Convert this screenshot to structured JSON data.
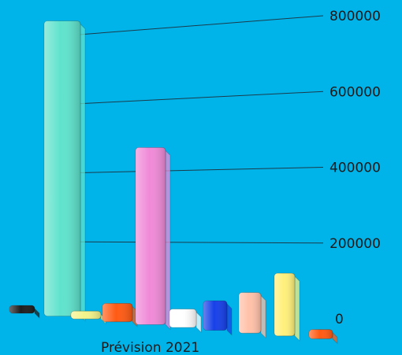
{
  "chart_data": {
    "type": "bar",
    "style": "3d",
    "categories": [
      ""
    ],
    "xlabel": "Prévision 2021",
    "ylim": [
      0,
      800000
    ],
    "yticks": [
      "0",
      "200000",
      "400000",
      "600000",
      "800000"
    ],
    "grid": true,
    "legend": "none",
    "series": [
      {
        "values": [
          20000
        ],
        "color": "#1e1e1e"
      },
      {
        "values": [
          800000
        ],
        "color": "#5fe3cd"
      },
      {
        "values": [
          15000
        ],
        "color": "#f3f38a"
      },
      {
        "values": [
          50000
        ],
        "color": "#ff5a14"
      },
      {
        "values": [
          480000
        ],
        "color": "#f08ad8"
      },
      {
        "values": [
          50000
        ],
        "color": "#ffffff"
      },
      {
        "values": [
          80000
        ],
        "color": "#1740e8"
      },
      {
        "values": [
          110000
        ],
        "color": "#ffc1a8"
      },
      {
        "values": [
          170000
        ],
        "color": "#fff07a"
      },
      {
        "values": [
          25000
        ],
        "color": "#ff5a14"
      }
    ]
  }
}
